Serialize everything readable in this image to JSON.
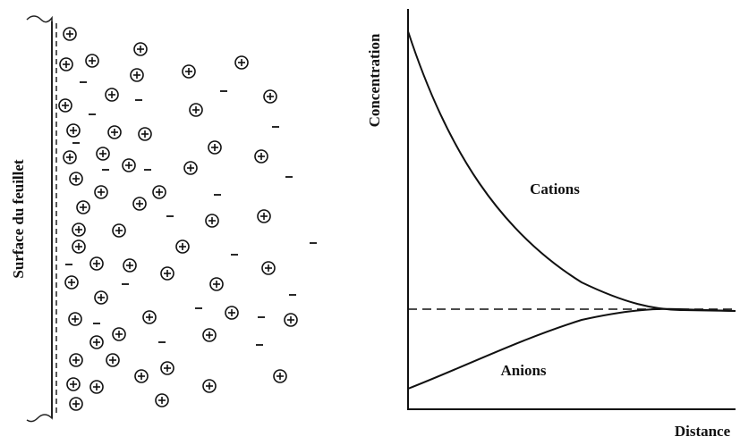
{
  "left_panel": {
    "surface_label": "Surface du feuillet"
  },
  "right_panel": {
    "y_axis_label": "Concentration",
    "x_axis_label": "Distance",
    "cations_label": "Cations",
    "anions_label": "Anions"
  }
}
